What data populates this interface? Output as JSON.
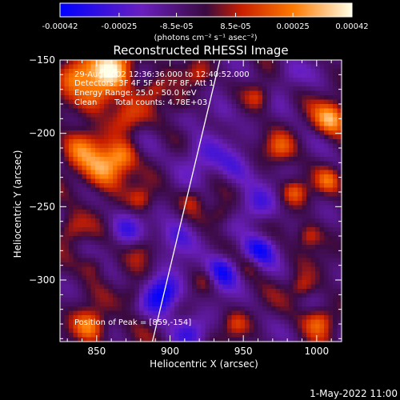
{
  "chart_data": {
    "type": "heatmap",
    "title": "Reconstructed RHESSI Image",
    "xlabel": "Heliocentric X (arcsec)",
    "ylabel": "Heliocentric Y (arcsec)",
    "xlim": [
      825,
      1017
    ],
    "ylim": [
      -342,
      -150
    ],
    "xticks": [
      850,
      900,
      950,
      1000
    ],
    "yticks": [
      -150,
      -200,
      -250,
      -300
    ],
    "colorbar": {
      "range": [
        -0.00042,
        0.00042
      ],
      "tick_values": [
        -0.00042,
        -0.00025,
        -8.5e-05,
        8.5e-05,
        0.00025,
        0.00042
      ],
      "tick_labels": [
        "-0.00042",
        "-0.00025",
        "-8.5e-05",
        "8.5e-05",
        "0.00025",
        "0.00042"
      ],
      "unit_label": "(photons cm⁻² s⁻¹ asec⁻²)",
      "colors": [
        "#0000ff",
        "#6a1fbf",
        "#3a0a40",
        "#c81e00",
        "#ff7a00",
        "#ffffe8"
      ]
    },
    "annotations": {
      "time_range": "29-Aug-2002 12:36:36.000 to 12:40:52.000",
      "detectors": "Detectors: 3F 4F 5F 6F 7F 8F, Att 1",
      "energy_range": "Energy Range: 25.0 - 50.0 keV",
      "method": "Clean",
      "total_counts": "Total counts: 4.78E+03",
      "peak": "Position of Peak = [859,-154]"
    },
    "limb_line": [
      [
        888,
        -342
      ],
      [
        934,
        -150
      ]
    ],
    "hotspots": [
      {
        "x": 835,
        "y": -160,
        "v": 0.0003,
        "s": 9
      },
      {
        "x": 862,
        "y": -155,
        "v": 0.00042,
        "s": 10
      },
      {
        "x": 850,
        "y": -175,
        "v": 0.00028,
        "s": 9
      },
      {
        "x": 870,
        "y": -190,
        "v": 0.0002,
        "s": 8
      },
      {
        "x": 838,
        "y": -210,
        "v": 0.00025,
        "s": 9
      },
      {
        "x": 855,
        "y": -225,
        "v": 0.00035,
        "s": 10
      },
      {
        "x": 868,
        "y": -215,
        "v": 0.00022,
        "s": 7
      },
      {
        "x": 880,
        "y": -245,
        "v": 0.00016,
        "s": 6
      },
      {
        "x": 832,
        "y": -265,
        "v": 0.00018,
        "s": 7
      },
      {
        "x": 848,
        "y": -290,
        "v": 0.00014,
        "s": 6
      },
      {
        "x": 845,
        "y": -332,
        "v": 0.00032,
        "s": 8
      },
      {
        "x": 875,
        "y": -310,
        "v": 0.00016,
        "s": 6
      },
      {
        "x": 890,
        "y": -170,
        "v": 0.00018,
        "s": 6
      },
      {
        "x": 905,
        "y": -180,
        "v": 0.00015,
        "s": 6
      },
      {
        "x": 920,
        "y": -160,
        "v": 0.00016,
        "s": 6
      },
      {
        "x": 915,
        "y": -245,
        "v": 0.00014,
        "s": 6
      },
      {
        "x": 935,
        "y": -255,
        "v": 0.00016,
        "s": 6
      },
      {
        "x": 925,
        "y": -300,
        "v": 0.00014,
        "s": 6
      },
      {
        "x": 945,
        "y": -330,
        "v": 0.00015,
        "s": 6
      },
      {
        "x": 960,
        "y": -175,
        "v": 0.00018,
        "s": 6
      },
      {
        "x": 975,
        "y": -210,
        "v": 0.0002,
        "s": 7
      },
      {
        "x": 985,
        "y": -240,
        "v": 0.00022,
        "s": 6
      },
      {
        "x": 995,
        "y": -270,
        "v": 0.0002,
        "s": 6
      },
      {
        "x": 990,
        "y": -305,
        "v": 0.00018,
        "s": 6
      },
      {
        "x": 1010,
        "y": -190,
        "v": 0.00034,
        "s": 8
      },
      {
        "x": 1008,
        "y": -232,
        "v": 0.0002,
        "s": 6
      },
      {
        "x": 1002,
        "y": -328,
        "v": 0.00024,
        "s": 7
      },
      {
        "x": 955,
        "y": -290,
        "v": 0.00012,
        "s": 6
      },
      {
        "x": 880,
        "y": -280,
        "v": 0.0001,
        "s": 6
      }
    ],
    "coldspots": [
      {
        "x": 895,
        "y": -310,
        "v": -0.0004,
        "s": 9
      },
      {
        "x": 935,
        "y": -295,
        "v": -0.00036,
        "s": 8
      },
      {
        "x": 960,
        "y": -280,
        "v": -0.0003,
        "s": 8
      },
      {
        "x": 905,
        "y": -270,
        "v": -0.00022,
        "s": 9
      },
      {
        "x": 920,
        "y": -215,
        "v": -0.0002,
        "s": 10
      },
      {
        "x": 945,
        "y": -225,
        "v": -0.00018,
        "s": 9
      },
      {
        "x": 870,
        "y": -265,
        "v": -0.00018,
        "s": 8
      },
      {
        "x": 935,
        "y": -185,
        "v": -0.00014,
        "s": 8
      },
      {
        "x": 960,
        "y": -250,
        "v": -0.0002,
        "s": 9
      },
      {
        "x": 980,
        "y": -160,
        "v": -0.00014,
        "s": 8
      },
      {
        "x": 915,
        "y": -335,
        "v": -0.0002,
        "s": 8
      }
    ]
  },
  "footer_date": "1-May-2022 11:00"
}
